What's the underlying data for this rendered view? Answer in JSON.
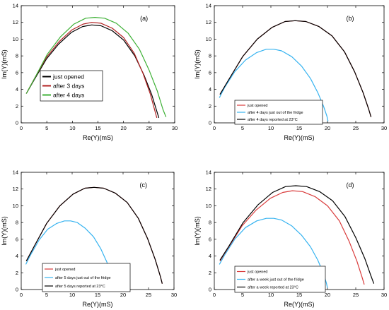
{
  "chart_data": [
    {
      "type": "line",
      "panel_label": "(a)",
      "xlabel": "Re(Y)(mS)",
      "ylabel": "Im(Y)(mS)",
      "xlim": [
        0,
        30
      ],
      "ylim": [
        0,
        14
      ],
      "xticks": [
        "0",
        "5",
        "10",
        "15",
        "20",
        "25",
        "30"
      ],
      "yticks": [
        "0",
        "2",
        "4",
        "6",
        "8",
        "10",
        "12",
        "14"
      ],
      "legend_position": "center-left",
      "series": [
        {
          "name": "just opened",
          "color": "#000000",
          "x": [
            1.0,
            2.5,
            4.9,
            7.3,
            9.8,
            12.0,
            13.8,
            15.6,
            17.8,
            20.0,
            22.2,
            24.0,
            25.5,
            26.5,
            26.9,
            26.9
          ],
          "y": [
            3.5,
            5.1,
            7.6,
            9.4,
            10.8,
            11.5,
            11.7,
            11.6,
            11.0,
            9.9,
            8.0,
            5.7,
            3.4,
            1.4,
            0.6,
            0.6
          ]
        },
        {
          "name": "after 3 days",
          "color": "#b22222",
          "x": [
            1.0,
            2.5,
            4.9,
            7.4,
            9.9,
            12.1,
            13.8,
            15.6,
            17.8,
            20.0,
            22.1,
            23.8,
            25.2,
            26.1,
            26.5,
            26.5
          ],
          "y": [
            3.5,
            5.2,
            7.8,
            9.7,
            11.1,
            11.8,
            12.0,
            11.9,
            11.3,
            10.2,
            8.3,
            5.9,
            3.5,
            1.5,
            0.6,
            0.6
          ]
        },
        {
          "name": "after 4 days",
          "color": "#3cb034",
          "x": [
            1.0,
            2.6,
            5.1,
            7.7,
            10.3,
            12.6,
            14.4,
            16.3,
            18.6,
            20.9,
            23.1,
            25.0,
            26.6,
            27.7,
            28.3,
            28.3
          ],
          "y": [
            3.5,
            5.3,
            8.2,
            10.3,
            11.8,
            12.5,
            12.6,
            12.5,
            11.9,
            10.7,
            8.8,
            6.3,
            3.8,
            1.6,
            0.7,
            0.7
          ]
        }
      ]
    },
    {
      "type": "line",
      "panel_label": "(b)",
      "xlabel": "Re(Y)(mS)",
      "ylabel": "Im(Y)(mS)",
      "xlim": [
        0,
        30
      ],
      "ylim": [
        0,
        14
      ],
      "xticks": [
        "0",
        "5",
        "10",
        "15",
        "20",
        "25",
        "30"
      ],
      "yticks": [
        "0",
        "2",
        "4",
        "6",
        "8",
        "10",
        "12",
        "14"
      ],
      "legend_position": "bottom-left",
      "series": [
        {
          "name": "just opened",
          "color": "#d93b3b",
          "x": [
            1.0,
            2.5,
            5.0,
            7.6,
            10.2,
            12.5,
            14.3,
            16.2,
            18.5,
            20.8,
            23.0,
            24.8,
            26.3,
            27.3,
            27.7,
            27.7
          ],
          "y": [
            3.4,
            5.1,
            7.9,
            10.0,
            11.4,
            12.1,
            12.2,
            12.1,
            11.5,
            10.4,
            8.5,
            6.1,
            3.6,
            1.6,
            0.7,
            0.7
          ]
        },
        {
          "name": "after 4 days just out of the fridge",
          "color": "#36b3f0",
          "x": [
            0.9,
            1.8,
            3.6,
            5.5,
            7.5,
            9.2,
            10.5,
            11.9,
            13.7,
            15.4,
            17.0,
            18.3,
            19.3,
            19.9,
            20.1,
            20.1
          ],
          "y": [
            3.0,
            4.2,
            6.1,
            7.5,
            8.4,
            8.8,
            8.8,
            8.6,
            7.9,
            6.8,
            5.3,
            3.6,
            2.0,
            0.8,
            0.2,
            0.2
          ]
        },
        {
          "name": "after 4 days reported at 23°C",
          "color": "#000000",
          "x": [
            1.0,
            2.5,
            5.0,
            7.6,
            10.2,
            12.5,
            14.3,
            16.2,
            18.5,
            20.8,
            23.0,
            24.8,
            26.3,
            27.3,
            27.7,
            27.7
          ],
          "y": [
            3.4,
            5.1,
            7.9,
            10.0,
            11.4,
            12.1,
            12.2,
            12.1,
            11.5,
            10.4,
            8.5,
            6.1,
            3.6,
            1.6,
            0.7,
            0.7
          ]
        }
      ]
    },
    {
      "type": "line",
      "panel_label": "(c)",
      "xlabel": "Re(Y)(mS)",
      "ylabel": "Im(Y)(mS)",
      "xlim": [
        0,
        30
      ],
      "ylim": [
        0,
        14
      ],
      "xticks": [
        "0",
        "5",
        "10",
        "15",
        "20",
        "25",
        "30"
      ],
      "yticks": [
        "0",
        "2",
        "4",
        "6",
        "8",
        "10",
        "12",
        "14"
      ],
      "legend_position": "bottom-left",
      "series": [
        {
          "name": "just opened",
          "color": "#d93b3b",
          "x": [
            1.0,
            2.5,
            5.0,
            7.6,
            10.2,
            12.5,
            14.3,
            16.2,
            18.5,
            20.8,
            23.0,
            24.8,
            26.3,
            27.3,
            27.7,
            27.7
          ],
          "y": [
            3.4,
            5.1,
            7.9,
            10.0,
            11.4,
            12.1,
            12.2,
            12.1,
            11.5,
            10.4,
            8.5,
            6.1,
            3.6,
            1.6,
            0.7,
            0.7
          ]
        },
        {
          "name": "after 5 days just out of the fridge",
          "color": "#36b3f0",
          "x": [
            0.9,
            1.8,
            3.5,
            5.2,
            7.0,
            8.5,
            9.7,
            11.0,
            12.6,
            14.2,
            15.6,
            16.8,
            17.7,
            18.3,
            18.5,
            18.5
          ],
          "y": [
            3.0,
            4.1,
            5.9,
            7.2,
            7.9,
            8.2,
            8.2,
            8.0,
            7.3,
            6.3,
            4.9,
            3.3,
            1.8,
            0.7,
            0.2,
            0.2
          ]
        },
        {
          "name": "after 5 days reported at 23°C",
          "color": "#000000",
          "x": [
            1.0,
            2.5,
            5.0,
            7.6,
            10.2,
            12.5,
            14.3,
            16.2,
            18.5,
            20.8,
            23.0,
            24.8,
            26.3,
            27.3,
            27.7,
            27.7
          ],
          "y": [
            3.4,
            5.1,
            7.9,
            10.0,
            11.4,
            12.1,
            12.2,
            12.1,
            11.5,
            10.4,
            8.5,
            6.1,
            3.6,
            1.6,
            0.7,
            0.7
          ]
        }
      ]
    },
    {
      "type": "line",
      "panel_label": "(d)",
      "xlabel": "Re(Y)(mS)",
      "ylabel": "Im(Y)(mS)",
      "xlim": [
        0,
        30
      ],
      "ylim": [
        0,
        14
      ],
      "xticks": [
        "0",
        "5",
        "10",
        "15",
        "20",
        "25",
        "30"
      ],
      "yticks": [
        "0",
        "2",
        "4",
        "6",
        "8",
        "10",
        "12",
        "14"
      ],
      "legend_position": "bottom-left",
      "series": [
        {
          "name": "just opened",
          "color": "#d93b3b",
          "x": [
            1.0,
            2.5,
            4.9,
            7.4,
            9.9,
            12.1,
            13.8,
            15.6,
            17.8,
            20.0,
            22.1,
            23.8,
            25.2,
            26.1,
            26.5,
            26.5
          ],
          "y": [
            3.4,
            5.0,
            7.6,
            9.5,
            10.9,
            11.6,
            11.8,
            11.7,
            11.1,
            10.0,
            8.2,
            5.8,
            3.4,
            1.5,
            0.6,
            0.6
          ]
        },
        {
          "name": "after a week just out of the fridge",
          "color": "#36b3f0",
          "x": [
            0.9,
            1.8,
            3.6,
            5.5,
            7.5,
            9.2,
            10.5,
            11.9,
            13.7,
            15.4,
            17.0,
            18.3,
            19.3,
            19.8,
            20.0,
            20.0
          ],
          "y": [
            3.0,
            4.1,
            6.0,
            7.4,
            8.2,
            8.5,
            8.5,
            8.3,
            7.6,
            6.5,
            5.1,
            3.5,
            1.9,
            0.8,
            0.2,
            0.2
          ]
        },
        {
          "name": "after a week reported at 23°C",
          "color": "#000000",
          "x": [
            1.0,
            2.6,
            5.1,
            7.7,
            10.3,
            12.6,
            14.4,
            16.3,
            18.6,
            20.9,
            23.1,
            25.0,
            26.6,
            27.7,
            28.2,
            28.2
          ],
          "y": [
            3.5,
            5.2,
            8.0,
            10.1,
            11.6,
            12.3,
            12.4,
            12.3,
            11.7,
            10.6,
            8.7,
            6.2,
            3.7,
            1.6,
            0.7,
            0.7
          ]
        }
      ]
    }
  ]
}
